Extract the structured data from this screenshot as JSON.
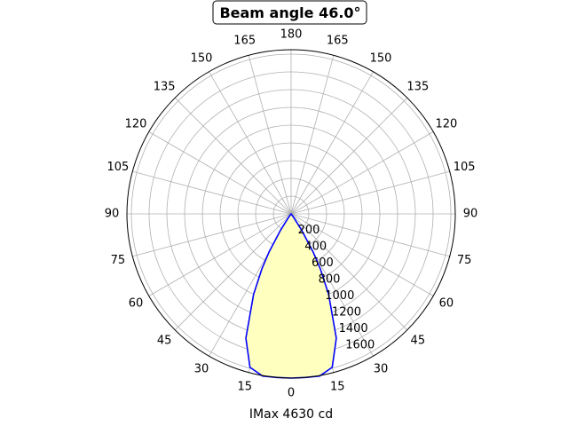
{
  "chart_data": {
    "type": "polar-line",
    "title": "Beam angle 46.0°",
    "xlabel": "IMax 4630 cd",
    "angle_tick_labels": [
      "0",
      "15",
      "30",
      "45",
      "60",
      "75",
      "90",
      "105",
      "120",
      "135",
      "150",
      "165",
      "180",
      "165",
      "150",
      "135",
      "120",
      "105",
      "90",
      "75",
      "60",
      "45",
      "30",
      "15"
    ],
    "radial_tick_labels": [
      "200",
      "400",
      "600",
      "800",
      "1000",
      "1200",
      "1400",
      "1600"
    ],
    "radial_max": 1850,
    "grid": true,
    "series": [
      {
        "color": "#0000ff",
        "fill": "#ffffc0",
        "points": [
          {
            "angle": 0,
            "r": 1850
          },
          {
            "angle": 5,
            "r": 1850
          },
          {
            "angle": 10,
            "r": 1855
          },
          {
            "angle": 15,
            "r": 1790
          },
          {
            "angle": 20,
            "r": 1490
          },
          {
            "angle": 25,
            "r": 1000
          },
          {
            "angle": 28,
            "r": 700
          },
          {
            "angle": 30,
            "r": 500
          },
          {
            "angle": 33,
            "r": 220
          },
          {
            "angle": 36,
            "r": 40
          },
          {
            "angle": 40,
            "r": 0
          }
        ]
      }
    ]
  }
}
